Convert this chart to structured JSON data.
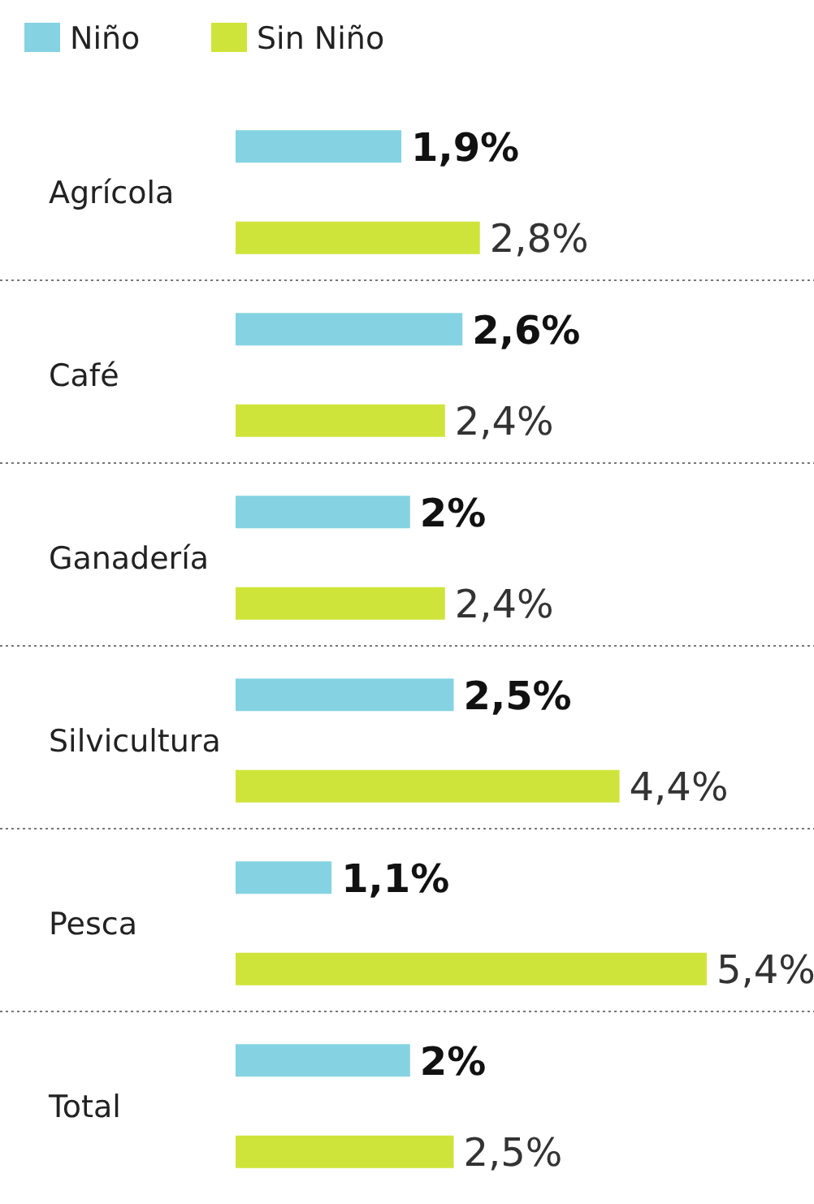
{
  "chart_data": {
    "type": "bar",
    "orientation": "horizontal",
    "categories": [
      "Agrícola",
      "Café",
      "Ganadería",
      "Silvicultura",
      "Pesca",
      "Total"
    ],
    "series": [
      {
        "name": "Niño",
        "color": "#85d3e2",
        "values": [
          1.9,
          2.6,
          2,
          2.5,
          1.1,
          2
        ],
        "value_labels": [
          "1,9%",
          "2,6%",
          "2%",
          "2,5%",
          "1,1%",
          "2%"
        ]
      },
      {
        "name": "Sin Niño",
        "color": "#cfe43a",
        "values": [
          2.8,
          2.4,
          2.4,
          4.4,
          5.4,
          2.5
        ],
        "value_labels": [
          "2,8%",
          "2,4%",
          "2,4%",
          "4,4%",
          "5,4%",
          "2,5%"
        ]
      }
    ],
    "legend": "top left",
    "grid": "y",
    "tick_labels": "y"
  }
}
